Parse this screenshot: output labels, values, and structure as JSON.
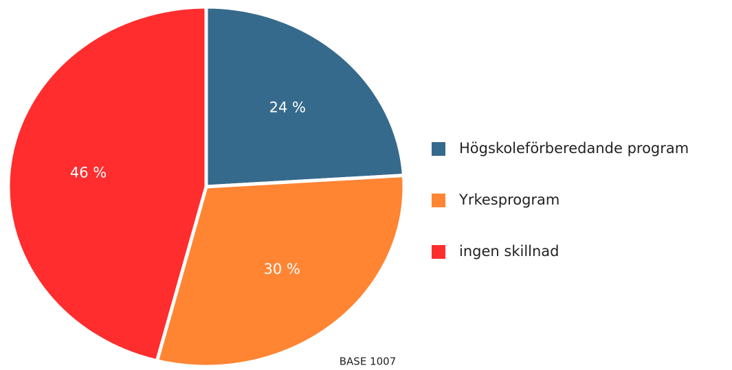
{
  "chart_data": {
    "type": "pie",
    "categories": [
      "Högskoleförberedande program",
      "Yrkesprogram",
      "ingen skillnad"
    ],
    "values": [
      24,
      30,
      46
    ],
    "value_labels": [
      "24 %",
      "30 %",
      "46 %"
    ],
    "colors": [
      "#366a8c",
      "#ff8533",
      "#ff2d2d"
    ],
    "annotation": "BASE 1007",
    "legend": "right"
  }
}
